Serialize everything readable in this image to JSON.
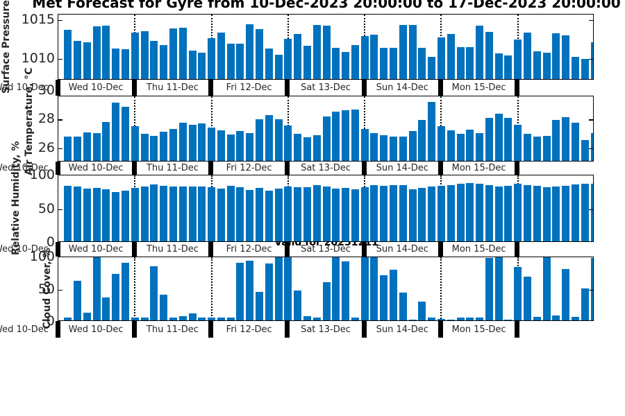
{
  "title": "Met Forecast for Gyre from 10-Dec-2023 20:00:00 to 17-Dec-2023 20:00:00",
  "annotation": "Valid for 20251211",
  "colors": {
    "bar": "#0072BD",
    "axis": "#000000",
    "text": "#262626"
  },
  "x_axis": {
    "day_labels": [
      "Wed 10-Dec",
      "Thu 11-Dec",
      "Fri 12-Dec",
      "Sat 13-Dec",
      "Sun 14-Dec",
      "Mon 15-Dec"
    ],
    "clipped_left_label": "Wed 10-Dec"
  },
  "chart_data": [
    {
      "type": "bar",
      "ylabel": "Surface Pressure, mb",
      "yticks": [
        {
          "v": 1010,
          "label": "1010"
        },
        {
          "v": 1015,
          "label": "1015"
        }
      ],
      "ylim": [
        1007.2,
        1015.68
      ],
      "values": [
        1013.5,
        1012.1,
        1011.9,
        1014.0,
        1014.1,
        1011.1,
        1011.0,
        1013.2,
        1013.4,
        1012.1,
        1011.6,
        1013.7,
        1013.8,
        1010.9,
        1010.6,
        1012.5,
        1013.2,
        1011.8,
        1011.8,
        1014.3,
        1013.6,
        1011.1,
        1010.3,
        1012.4,
        1013.0,
        1011.5,
        1014.15,
        1014.1,
        1011.2,
        1010.7,
        1011.6,
        1012.7,
        1012.9,
        1011.2,
        1011.25,
        1014.15,
        1014.15,
        1011.2,
        1010.1,
        1012.6,
        1013.0,
        1011.3,
        1011.3,
        1014.05,
        1013.3,
        1010.5,
        1010.2,
        1012.3,
        1013.2,
        1010.8,
        1010.6,
        1013.1,
        1012.8,
        1010.1,
        1009.8,
        1011.9
      ]
    },
    {
      "type": "bar",
      "ylabel": "Air Temperature, °C",
      "yticks": [
        {
          "v": 26,
          "label": "26"
        },
        {
          "v": 28,
          "label": "28"
        },
        {
          "v": 30,
          "label": "30"
        }
      ],
      "ylim": [
        25.0,
        29.63
      ],
      "values": [
        26.7,
        26.7,
        27.0,
        26.95,
        27.75,
        29.1,
        28.8,
        27.45,
        26.9,
        26.75,
        27.05,
        27.25,
        27.7,
        27.55,
        27.65,
        27.35,
        27.15,
        26.85,
        27.1,
        26.95,
        27.95,
        28.2,
        27.95,
        27.5,
        26.9,
        26.65,
        26.8,
        28.1,
        28.45,
        28.55,
        28.6,
        27.25,
        26.95,
        26.8,
        26.7,
        26.7,
        27.1,
        27.9,
        29.15,
        27.45,
        27.15,
        26.9,
        27.2,
        26.95,
        28.0,
        28.3,
        28.0,
        27.55,
        26.9,
        26.7,
        26.75,
        27.9,
        28.05,
        27.7,
        26.45,
        26.95
      ]
    },
    {
      "type": "bar",
      "ylabel": "Relative Humidity, %",
      "yticks": [
        {
          "v": 0,
          "label": "0"
        },
        {
          "v": 50,
          "label": "50"
        },
        {
          "v": 100,
          "label": "100"
        }
      ],
      "ylim": [
        0,
        100
      ],
      "values": [
        83,
        82,
        78,
        79,
        77,
        73,
        75,
        79,
        81,
        85,
        83,
        82,
        82,
        81,
        81,
        80,
        78,
        83,
        80,
        76,
        79,
        75,
        78,
        81,
        80,
        80,
        84,
        82,
        78,
        79,
        77,
        80,
        84,
        83,
        84,
        84,
        77,
        79,
        81,
        83,
        84,
        86,
        87,
        86,
        84,
        82,
        83,
        86,
        84,
        83,
        80,
        81,
        83,
        85,
        86,
        86
      ]
    },
    {
      "type": "bar",
      "ylabel": "Cloud Cover, %",
      "yticks": [
        {
          "v": 0,
          "label": "0"
        },
        {
          "v": 50,
          "label": "50"
        },
        {
          "v": 100,
          "label": "100"
        }
      ],
      "ylim": [
        0,
        100
      ],
      "values": [
        4,
        61,
        12,
        100,
        36,
        72,
        89,
        4,
        4,
        84,
        40,
        4,
        6,
        11,
        4,
        4,
        4,
        4,
        89,
        93,
        44,
        88,
        100,
        99,
        46,
        6,
        4,
        59,
        100,
        91,
        4,
        99,
        100,
        70,
        79,
        43,
        1,
        29,
        4,
        2,
        1,
        4,
        4,
        4,
        97,
        100,
        1,
        83,
        68,
        5,
        100,
        8,
        80,
        5,
        49,
        97
      ]
    }
  ]
}
